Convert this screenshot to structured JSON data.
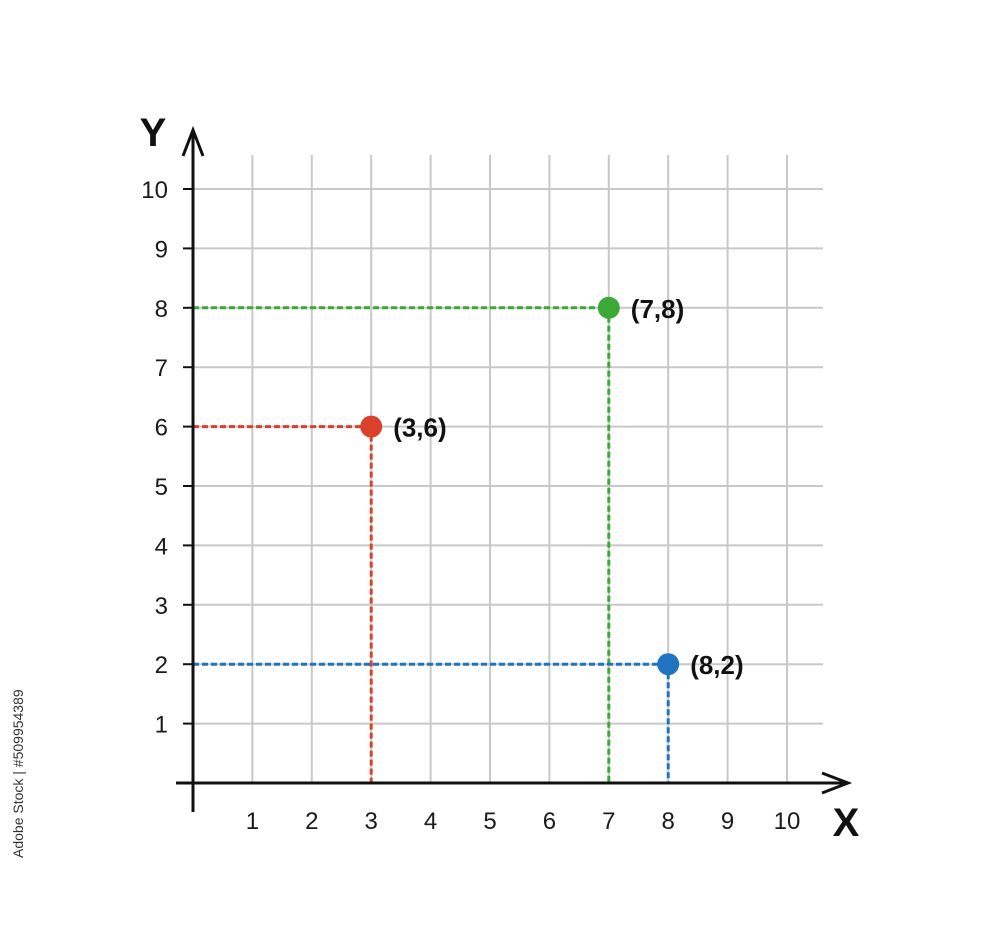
{
  "chart_data": {
    "type": "scatter",
    "xlabel": "X",
    "ylabel": "Y",
    "xlim": [
      0,
      10
    ],
    "ylim": [
      0,
      10
    ],
    "grid": true,
    "x_ticks": [
      "1",
      "2",
      "3",
      "4",
      "5",
      "6",
      "7",
      "8",
      "9",
      "10"
    ],
    "y_ticks": [
      "1",
      "2",
      "3",
      "4",
      "5",
      "6",
      "7",
      "8",
      "9",
      "10"
    ],
    "points": [
      {
        "x": 3,
        "y": 6,
        "label": "(3,6)",
        "color": "#d9412b"
      },
      {
        "x": 7,
        "y": 8,
        "label": "(7,8)",
        "color": "#3aa935"
      },
      {
        "x": 8,
        "y": 2,
        "label": "(8,2)",
        "color": "#1f73c0"
      }
    ],
    "guide_lines": "dashed lines from each point to both axes",
    "colors": {
      "grid": "#c8c8c8",
      "axis": "#111111"
    }
  },
  "watermark": "Adobe Stock | #509954389"
}
